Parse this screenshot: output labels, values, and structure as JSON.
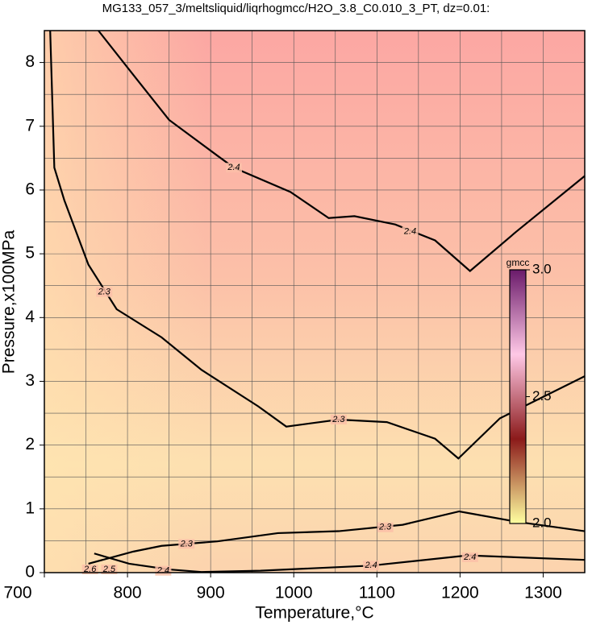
{
  "chart_data": {
    "type": "contour",
    "title": "MG133_057_3/meltsliquid/liqrhogmcc/H2O_3.8_C0.010_3_PT, dz=0.01:",
    "x_label": "Temperature,°C",
    "y_label": "Pressure,x100MPa",
    "xlim": [
      700,
      1350
    ],
    "ylim": [
      0,
      8.5
    ],
    "xticks": [
      700,
      800,
      900,
      1000,
      1100,
      1200,
      1300
    ],
    "yticks": [
      0,
      1,
      2,
      3,
      4,
      5,
      6,
      7,
      8
    ],
    "grid": true,
    "colorbar": {
      "title": "gmcc",
      "zlim": [
        2.0,
        3.0
      ],
      "ticks": [
        {
          "value": 2.0,
          "label": "2.0"
        },
        2.5,
        {
          "value": 3.0,
          "label": "3.0"
        }
      ],
      "colors": [
        "#ffffa0",
        "#8b1a1a",
        "#ffc8e6",
        "#6a1a6a"
      ]
    },
    "contours": [
      {
        "level": 2.4,
        "label_at": [
          928,
          6.35
        ],
        "x": [
          765,
          811,
          850,
          908,
          928,
          996,
          1042,
          1073,
          1122,
          1170,
          1212,
          1267,
          1350
        ],
        "y": [
          8.5,
          7.74,
          7.1,
          6.54,
          6.35,
          5.97,
          5.56,
          5.59,
          5.46,
          5.21,
          4.73,
          5.34,
          6.22
        ]
      },
      {
        "level": 2.4,
        "label_at": [
          1140,
          5.35
        ],
        "x": [],
        "y": []
      },
      {
        "level": 2.3,
        "label_at": [
          772,
          4.4
        ],
        "x": [
          707,
          712,
          724,
          753,
          787,
          841,
          889,
          957,
          991,
          1054,
          1112,
          1170,
          1198,
          1248,
          1350
        ],
        "y": [
          8.5,
          6.35,
          5.84,
          4.83,
          4.13,
          3.69,
          3.18,
          2.61,
          2.29,
          2.4,
          2.36,
          2.1,
          1.79,
          2.42,
          3.08
        ]
      },
      {
        "level": 2.3,
        "label_at": [
          1054,
          2.4
        ],
        "x": [],
        "y": []
      },
      {
        "level": 2.3,
        "label_at": [
          871,
          0.45
        ],
        "x": [
          753,
          807,
          841,
          908,
          981,
          1054,
          1131,
          1199,
          1267,
          1350
        ],
        "y": [
          0.14,
          0.33,
          0.42,
          0.49,
          0.62,
          0.65,
          0.75,
          0.96,
          0.8,
          0.65
        ]
      },
      {
        "level": 2.3,
        "label_at": [
          1110,
          0.71
        ],
        "x": [],
        "y": []
      },
      {
        "level": 2.4,
        "label_at": [
          1093,
          0.11
        ],
        "x": [
          760,
          802,
          850,
          889,
          960,
          1093,
          1209,
          1350
        ],
        "y": [
          0.3,
          0.14,
          0.05,
          0.01,
          0.03,
          0.11,
          0.27,
          0.2
        ]
      },
      {
        "level": 2.4,
        "label_at": [
          1212,
          0.24
        ],
        "x": [],
        "y": []
      },
      {
        "level": 2.4,
        "label_at": [
          843,
          0.03
        ],
        "x": [],
        "y": []
      },
      {
        "level": 2.5,
        "label_at": [
          778,
          0.05
        ],
        "x": [],
        "y": []
      },
      {
        "level": 2.6,
        "label_at": [
          755,
          0.05
        ],
        "x": [],
        "y": []
      }
    ]
  }
}
